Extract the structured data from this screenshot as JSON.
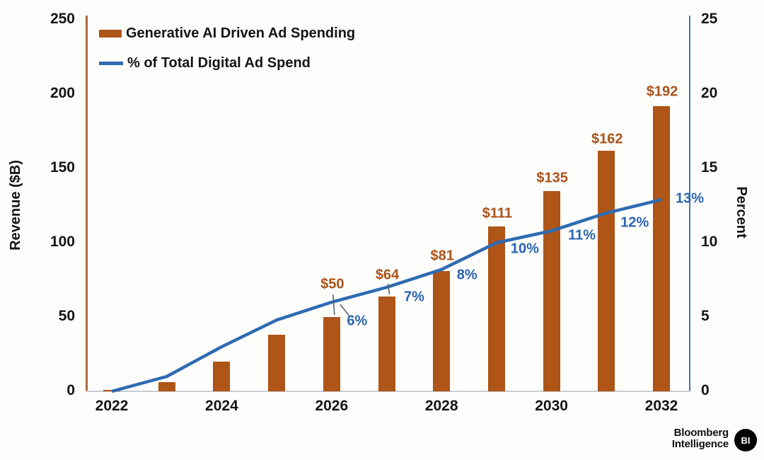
{
  "chart_data": {
    "type": "bar",
    "subtype": "combo-bar-line-dual-axis",
    "x": [
      "2022",
      "2023",
      "2024",
      "2025",
      "2026",
      "2027",
      "2028",
      "2029",
      "2030",
      "2031",
      "2032"
    ],
    "x_axis_tick_labels": [
      "2022",
      "2024",
      "2026",
      "2028",
      "2030",
      "2032"
    ],
    "series": [
      {
        "name": "Generative AI Driven Ad Spending",
        "type": "bar",
        "axis": "left",
        "values": [
          1,
          6,
          20,
          38,
          50,
          64,
          81,
          111,
          135,
          162,
          192
        ],
        "point_labels": [
          "",
          "",
          "",
          "",
          "$50",
          "$64",
          "$81",
          "$111",
          "$135",
          "$162",
          "$192"
        ]
      },
      {
        "name": "% of Total Digital Ad Spend",
        "type": "line",
        "axis": "right",
        "values": [
          0,
          1,
          3,
          4.8,
          6,
          7,
          8.2,
          10,
          10.8,
          12,
          12.9
        ],
        "point_labels": [
          "",
          "",
          "",
          "",
          "6%",
          "7%",
          "8%",
          "10%",
          "11%",
          "12%",
          "13%"
        ]
      }
    ],
    "left_axis": {
      "label": "Revenue ($B)",
      "min": 0,
      "max": 250,
      "ticks": [
        "0",
        "50",
        "100",
        "150",
        "200",
        "250"
      ]
    },
    "right_axis": {
      "label": "Percent",
      "min": 0,
      "max": 25,
      "ticks": [
        "0",
        "5",
        "10",
        "15",
        "20",
        "25"
      ]
    },
    "legend_position": "top-left",
    "grid": false
  },
  "credit": {
    "brand_line1": "Bloomberg",
    "brand_line2": "Intelligence",
    "badge": "BI"
  },
  "colors": {
    "bar": "#ae5517",
    "line": "#2f6bb3",
    "bar_label": "#ab531a",
    "pct_label": "#2a64b0",
    "left_spine": "#ad6a3c",
    "right_spine": "#4679b4",
    "bottom_spine": "#c9cdd1",
    "leader": "#5a6470",
    "badge_bg": "#000000",
    "badge_text": "#ffffff"
  }
}
